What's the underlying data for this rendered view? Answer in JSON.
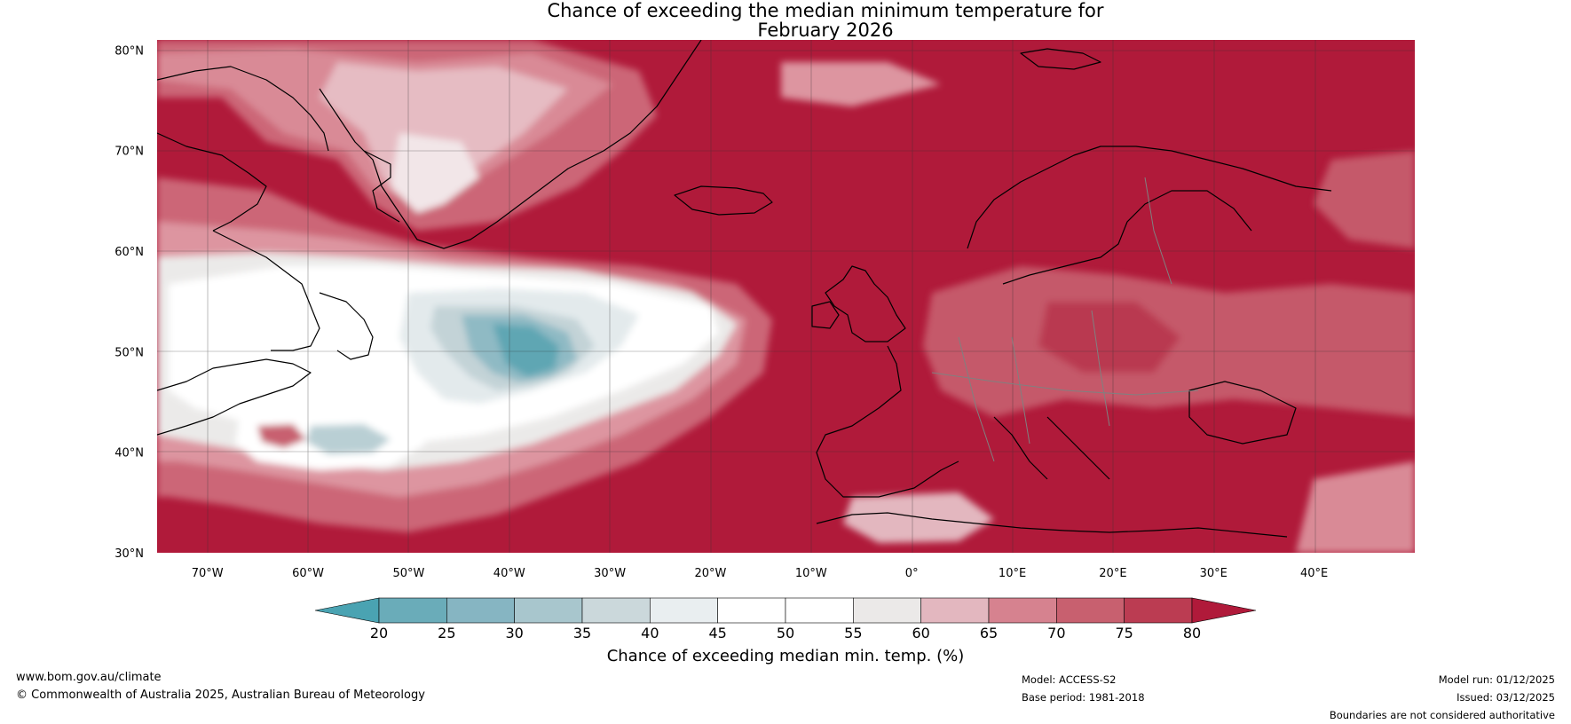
{
  "title": {
    "line1": "Chance of exceeding the median minimum temperature for",
    "line2": "February 2026"
  },
  "map": {
    "lat_labels": [
      "80°N",
      "70°N",
      "60°N",
      "50°N",
      "40°N",
      "30°N"
    ],
    "lon_labels": [
      "70°W",
      "60°W",
      "50°W",
      "40°W",
      "30°W",
      "20°W",
      "10°W",
      "0°",
      "10°E",
      "20°E",
      "30°E",
      "40°E"
    ],
    "lat_range": [
      30,
      81
    ],
    "lon_range": [
      -75,
      50
    ],
    "colors": {
      "dominant": "#b01a3a",
      "ocean_low_band": "#ffffff",
      "coast": "#000000",
      "borders": "#808080"
    }
  },
  "colorbar": {
    "ticks": [
      "20",
      "25",
      "30",
      "35",
      "40",
      "45",
      "50",
      "55",
      "60",
      "65",
      "70",
      "75",
      "80"
    ],
    "colors": [
      "#4aa3b2",
      "#6aacb9",
      "#86b5c2",
      "#a8c6cd",
      "#cbd8db",
      "#e9eef0",
      "#ffffff",
      "#ffffff",
      "#ebe9e8",
      "#e3b7bf",
      "#d6828f",
      "#c8606f",
      "#bb3c52",
      "#b01a3a"
    ],
    "label": "Chance of exceeding median min. temp. (%)"
  },
  "footer": {
    "website": "www.bom.gov.au/climate",
    "copyright": "© Commonwealth of Australia 2025, Australian Bureau of Meteorology",
    "model": "Model: ACCESS-S2",
    "base_period": "Base period: 1981-2018",
    "model_run": "Model run: 01/12/2025",
    "issued": "Issued: 03/12/2025",
    "disclaimer": "Boundaries are not considered authoritative"
  }
}
